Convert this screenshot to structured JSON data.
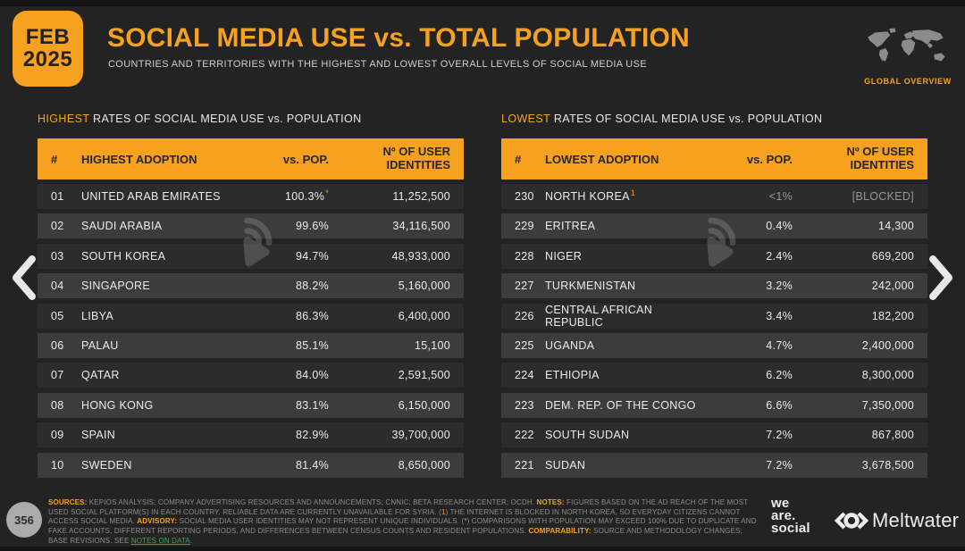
{
  "header": {
    "badge_month": "FEB",
    "badge_year": "2025",
    "title": "SOCIAL MEDIA USE vs. TOTAL POPULATION",
    "subtitle": "COUNTRIES AND TERRITORIES WITH THE HIGHEST AND LOWEST OVERALL LEVELS OF SOCIAL MEDIA USE",
    "corner_label": "GLOBAL OVERVIEW"
  },
  "chart_data": [
    {
      "type": "table",
      "id": "highest",
      "section_label": {
        "highlight": "HIGHEST",
        "rest": " RATES OF SOCIAL MEDIA USE vs. POPULATION"
      },
      "columns": {
        "rank": "#",
        "name": "HIGHEST ADOPTION",
        "pct": "vs. POP.",
        "identities": "Nº OF USER IDENTITIES"
      },
      "rows": [
        {
          "rank": "01",
          "name": "UNITED ARAB EMIRATES",
          "pct": "100.3%",
          "pct_marker": "*",
          "identities": "11,252,500"
        },
        {
          "rank": "02",
          "name": "SAUDI ARABIA",
          "pct": "99.6%",
          "identities": "34,116,500"
        },
        {
          "rank": "03",
          "name": "SOUTH KOREA",
          "pct": "94.7%",
          "identities": "48,933,000"
        },
        {
          "rank": "04",
          "name": "SINGAPORE",
          "pct": "88.2%",
          "identities": "5,160,000"
        },
        {
          "rank": "05",
          "name": "LIBYA",
          "pct": "86.3%",
          "identities": "6,400,000"
        },
        {
          "rank": "06",
          "name": "PALAU",
          "pct": "85.1%",
          "identities": "15,100"
        },
        {
          "rank": "07",
          "name": "QATAR",
          "pct": "84.0%",
          "identities": "2,591,500"
        },
        {
          "rank": "08",
          "name": "HONG KONG",
          "pct": "83.1%",
          "identities": "6,150,000"
        },
        {
          "rank": "09",
          "name": "SPAIN",
          "pct": "82.9%",
          "identities": "39,700,000"
        },
        {
          "rank": "10",
          "name": "SWEDEN",
          "pct": "81.4%",
          "identities": "8,650,000"
        }
      ]
    },
    {
      "type": "table",
      "id": "lowest",
      "section_label": {
        "highlight": "LOWEST",
        "rest": " RATES OF SOCIAL MEDIA USE vs. POPULATION"
      },
      "columns": {
        "rank": "#",
        "name": "LOWEST ADOPTION",
        "pct": "vs. POP.",
        "identities": "Nº OF USER IDENTITIES"
      },
      "rows": [
        {
          "rank": "230",
          "name": "NORTH KOREA",
          "name_marker": "1",
          "pct": "<1%",
          "identities": "[BLOCKED]",
          "dimmed": true
        },
        {
          "rank": "229",
          "name": "ERITREA",
          "pct": "0.4%",
          "identities": "14,300"
        },
        {
          "rank": "228",
          "name": "NIGER",
          "pct": "2.4%",
          "identities": "669,200"
        },
        {
          "rank": "227",
          "name": "TURKMENISTAN",
          "pct": "3.2%",
          "identities": "242,000"
        },
        {
          "rank": "226",
          "name": "CENTRAL AFRICAN REPUBLIC",
          "pct": "3.4%",
          "identities": "182,200"
        },
        {
          "rank": "225",
          "name": "UGANDA",
          "pct": "4.7%",
          "identities": "2,400,000"
        },
        {
          "rank": "224",
          "name": "ETHIOPIA",
          "pct": "6.2%",
          "identities": "8,300,000"
        },
        {
          "rank": "223",
          "name": "DEM. REP. OF THE CONGO",
          "pct": "6.6%",
          "identities": "7,350,000"
        },
        {
          "rank": "222",
          "name": "SOUTH SUDAN",
          "pct": "7.2%",
          "identities": "867,800"
        },
        {
          "rank": "221",
          "name": "SUDAN",
          "pct": "7.2%",
          "identities": "3,678,500"
        }
      ]
    }
  ],
  "footer": {
    "page_number": "356",
    "notes_segments": [
      {
        "text": "SOURCES:",
        "style": "label"
      },
      {
        "text": " KEPIOS ANALYSIS; COMPANY ADVERTISING RESOURCES AND ANNOUNCEMENTS; CNNIC; BETA RESEARCH CENTER; OCDH. ",
        "style": "text"
      },
      {
        "text": "NOTES:",
        "style": "label"
      },
      {
        "text": " FIGURES BASED ON THE AD REACH OF THE MOST USED SOCIAL PLATFORM(S) IN EACH COUNTRY. RELIABLE DATA ARE CURRENTLY UNAVAILABLE FOR SYRIA. (",
        "style": "text"
      },
      {
        "text": "1",
        "style": "marker"
      },
      {
        "text": ") THE INTERNET IS BLOCKED IN NORTH KOREA, SO EVERYDAY CITIZENS CANNOT ACCESS SOCIAL MEDIA. ",
        "style": "text"
      },
      {
        "text": "ADVISORY:",
        "style": "label"
      },
      {
        "text": " SOCIAL MEDIA USER IDENTITIES MAY NOT REPRESENT UNIQUE INDIVIDUALS. (",
        "style": "text"
      },
      {
        "text": "*",
        "style": "marker"
      },
      {
        "text": ") COMPARISONS WITH POPULATION MAY EXCEED 100% DUE TO DUPLICATE AND FAKE ACCOUNTS, DIFFERENT REPORTING PERIODS, AND DIFFERENCES BETWEEN CENSUS COUNTS AND RESIDENT POPULATIONS. ",
        "style": "text"
      },
      {
        "text": "COMPARABILITY:",
        "style": "label"
      },
      {
        "text": " SOURCE AND METHODOLOGY CHANGES; BASE REVISIONS. SEE ",
        "style": "text"
      },
      {
        "text": "NOTES ON DATA",
        "style": "link"
      },
      {
        "text": ".",
        "style": "text"
      }
    ]
  },
  "logos": {
    "we_are_social_lines": [
      "we",
      "are.",
      "social"
    ],
    "meltwater": "Meltwater"
  },
  "colors": {
    "accent_orange": "#F6A11F",
    "link_green": "#3FA45B",
    "background": "#232323",
    "row_dark": "#2C2C2C",
    "row_light": "#3C3C3C"
  }
}
